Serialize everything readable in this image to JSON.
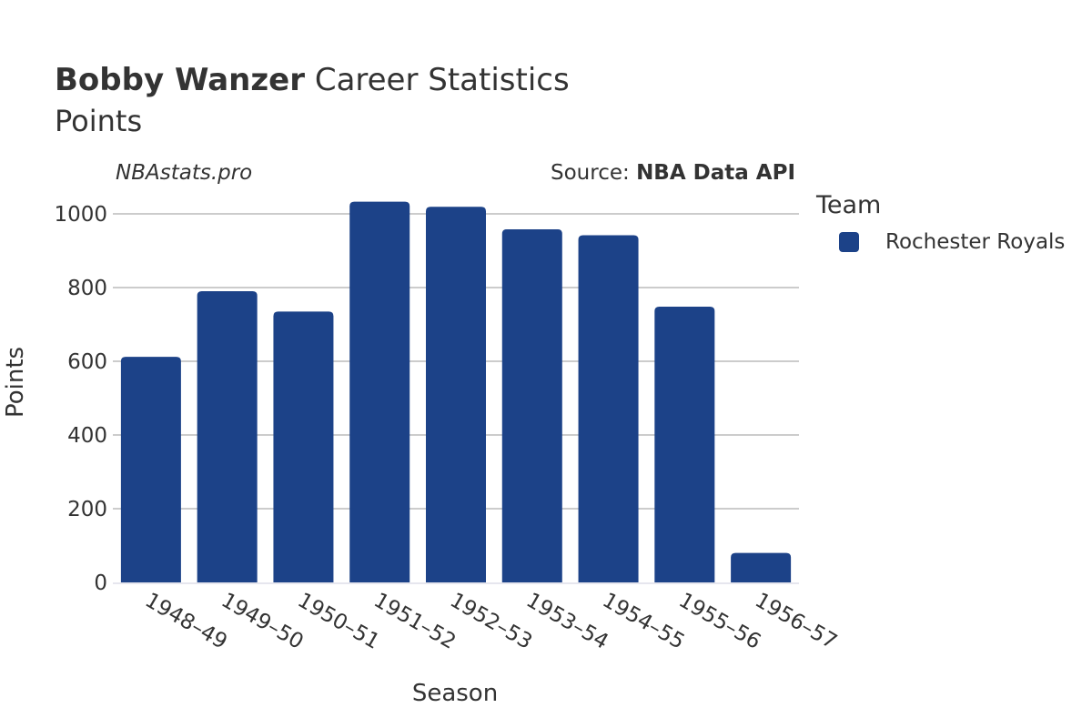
{
  "title": {
    "bold": "Bobby Wanzer",
    "rest": " Career Statistics"
  },
  "subtitle": "Points",
  "site_label": "NBAstats.pro",
  "source": {
    "prefix": "Source: ",
    "name": "NBA Data API"
  },
  "legend": {
    "title": "Team",
    "items": [
      {
        "label": "Rochester Royals",
        "color": "#1c4288"
      }
    ]
  },
  "chart_data": {
    "type": "bar",
    "xlabel": "Season",
    "ylabel": "Points",
    "ylim": [
      0,
      1050
    ],
    "yticks": [
      0,
      200,
      400,
      600,
      800,
      1000
    ],
    "grid": true,
    "legend_position": "right",
    "categories": [
      "1948–49",
      "1949–50",
      "1950–51",
      "1951–52",
      "1952–53",
      "1953–54",
      "1954–55",
      "1955–56",
      "1956–57"
    ],
    "series": [
      {
        "name": "Rochester Royals",
        "color": "#1c4288",
        "values": [
          612,
          790,
          735,
          1033,
          1019,
          958,
          942,
          748,
          80
        ]
      }
    ]
  }
}
